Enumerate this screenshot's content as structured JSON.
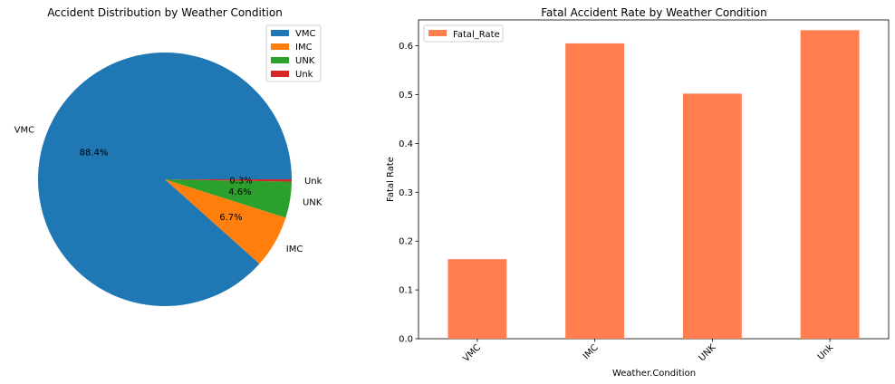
{
  "chart_data": [
    {
      "type": "pie",
      "title": "Accident Distribution by Weather Condition",
      "categories": [
        "VMC",
        "IMC",
        "UNK",
        "Unk"
      ],
      "values": [
        88.4,
        6.7,
        4.6,
        0.3
      ],
      "pct_labels": [
        "88.4%",
        "6.7%",
        "4.6%",
        "0.3%"
      ],
      "colors": [
        "#1f77b4",
        "#ff7f0e",
        "#2ca02c",
        "#d62728"
      ],
      "legend_placement": "top-right"
    },
    {
      "type": "bar",
      "title": "Fatal Accident Rate by Weather Condition",
      "categories": [
        "VMC",
        "IMC",
        "UNK",
        "Unk"
      ],
      "series": [
        {
          "name": "Fatal_Rate",
          "values": [
            0.163,
            0.605,
            0.502,
            0.632
          ],
          "color": "#ff7f50"
        }
      ],
      "xlabel": "Weather.Condition",
      "ylabel": "Fatal Rate",
      "ylim": [
        0,
        0.653
      ],
      "yticks": [
        "0.0",
        "0.1",
        "0.2",
        "0.3",
        "0.4",
        "0.5",
        "0.6"
      ],
      "grid": false,
      "legend_placement": "top-left"
    }
  ]
}
